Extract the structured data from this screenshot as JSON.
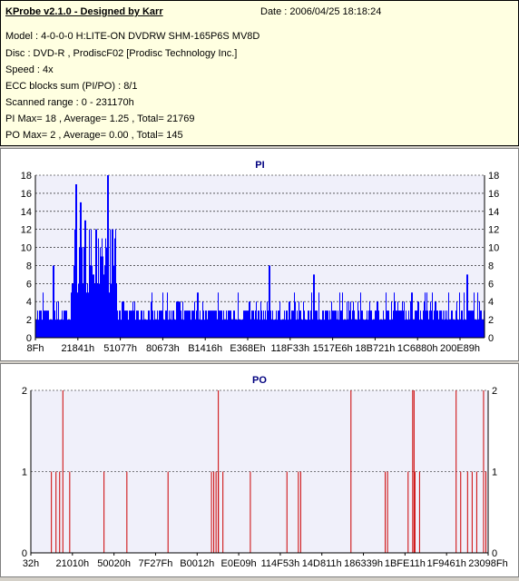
{
  "header": {
    "title": "KProbe v2.1.0 - Designed by Karr",
    "date": "Date : 2006/04/25 18:18:24",
    "lines": [
      "Model : 4-0-0-0 H:LITE-ON DVDRW SHM-165P6S MV8D",
      "Disc : DVD-R , ProdiscF02 [Prodisc Technology Inc.]",
      "Speed : 4x",
      "ECC blocks sum (PI/PO) : 8/1",
      "Scanned range : 0 - 231170h",
      "PI Max= 18 , Average= 1.25 , Total= 21769",
      "PO Max= 2 , Average= 0.00 , Total= 145"
    ]
  },
  "colors": {
    "pi": "#0000ff",
    "po": "#cc0000",
    "plot_bg": "#f0f0fa",
    "title": "#00007f"
  },
  "chart_data": [
    {
      "type": "bar",
      "title": "PI",
      "ylim": [
        0,
        18
      ],
      "yticks": [
        0,
        2,
        4,
        6,
        8,
        10,
        12,
        14,
        16,
        18
      ],
      "xlim": [
        0,
        1
      ],
      "xtick_labels": [
        "8Fh",
        "21841h",
        "51077h",
        "80673h",
        "B1416h",
        "E368Eh",
        "118F33h",
        "1517E6h",
        "18B721h",
        "1C6880h",
        "200E89h"
      ],
      "grid": true,
      "series": [
        {
          "values": []
        }
      ],
      "peaks": [
        {
          "x": 0.09,
          "y": 17
        },
        {
          "x": 0.16,
          "y": 18
        },
        {
          "x": 0.1,
          "y": 15
        },
        {
          "x": 0.11,
          "y": 13
        },
        {
          "x": 0.17,
          "y": 12
        },
        {
          "x": 0.52,
          "y": 8
        },
        {
          "x": 0.96,
          "y": 7
        },
        {
          "x": 0.62,
          "y": 7
        },
        {
          "x": 0.04,
          "y": 8
        }
      ]
    },
    {
      "type": "bar",
      "title": "PO",
      "ylim": [
        0,
        2
      ],
      "yticks": [
        0,
        1,
        2
      ],
      "xtick_labels": [
        "32h",
        "21010h",
        "50020h",
        "7F27Fh",
        "B0012h",
        "E0E09h",
        "114F53h",
        "14D811h",
        "186339h",
        "1BFE11h",
        "1F9461h",
        "23098Fh"
      ],
      "grid": true,
      "series": [
        {
          "x": [
            0.045,
            0.055,
            0.063,
            0.07,
            0.085,
            0.16,
            0.21,
            0.3,
            0.395,
            0.4,
            0.405,
            0.41,
            0.41,
            0.42,
            0.48,
            0.56,
            0.585,
            0.59,
            0.7,
            0.775,
            0.78,
            0.825,
            0.835,
            0.838,
            0.84,
            0.85,
            0.93,
            0.94,
            0.955,
            0.965,
            0.975,
            0.99,
            0.995
          ],
          "values": [
            1,
            1,
            1,
            2,
            1,
            1,
            1,
            1,
            1,
            1,
            1,
            2,
            1,
            1,
            1,
            1,
            1,
            1,
            2,
            1,
            1,
            1,
            2,
            2,
            1,
            1,
            2,
            1,
            1,
            1,
            1,
            2,
            1
          ]
        }
      ]
    }
  ]
}
